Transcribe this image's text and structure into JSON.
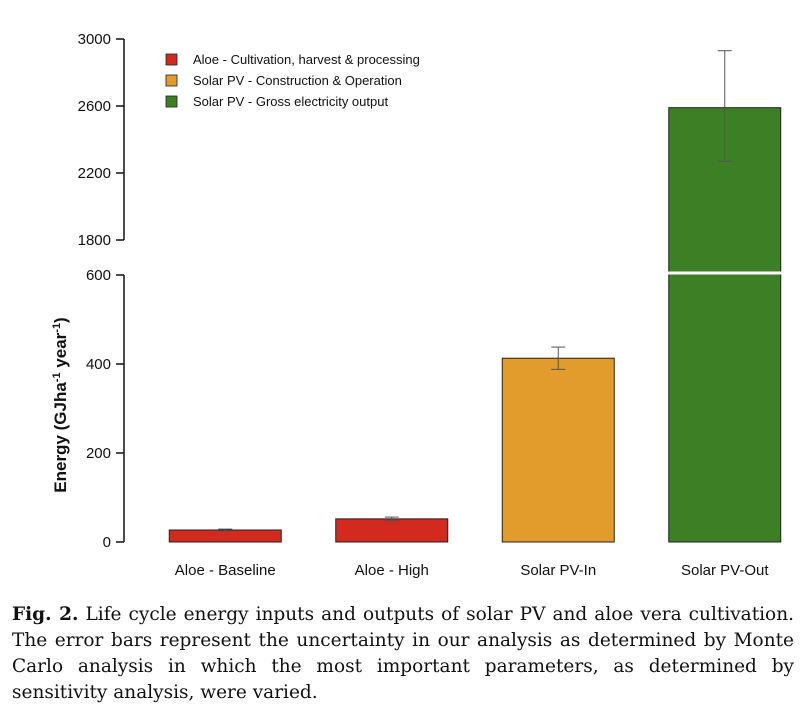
{
  "chart_data": {
    "type": "bar",
    "categories": [
      "Aloe - Baseline",
      "Aloe - High",
      "Solar PV-In",
      "Solar PV-Out"
    ],
    "values": [
      27,
      52,
      413,
      2590
    ],
    "error_low": [
      25,
      48,
      388,
      2270
    ],
    "error_high": [
      29,
      56,
      438,
      2930
    ],
    "colors": [
      "#d32a1f",
      "#d32a1f",
      "#e19c2c",
      "#3d7f24"
    ],
    "ylabel_parts": {
      "main": "Energy (GJha",
      "sup1": "-1",
      "mid": " year",
      "sup2": "-1",
      "end": ")"
    },
    "broken_axis": true,
    "lower_ylim": [
      0,
      600
    ],
    "upper_ylim": [
      1800,
      3000
    ],
    "lower_ticks": [
      "0",
      "200",
      "400",
      "600"
    ],
    "upper_ticks": [
      "1800",
      "2200",
      "2600",
      "3000"
    ],
    "legend": {
      "placement": "top-left",
      "entries": [
        {
          "label": "Aloe  - Cultivation, harvest & processing",
          "color": "#d32a1f"
        },
        {
          "label": "Solar PV - Construction & Operation",
          "color": "#e19c2c"
        },
        {
          "label": "Solar PV - Gross electricity output",
          "color": "#3d7f24"
        }
      ]
    }
  },
  "caption": {
    "label": "Fig. 2.",
    "text": " Life cycle energy inputs and outputs of solar PV and aloe vera cultivation. The error bars represent the uncertainty in our analysis as determined by Monte Carlo analysis in which the most important parameters, as determined by sensitivity analysis, were varied."
  }
}
